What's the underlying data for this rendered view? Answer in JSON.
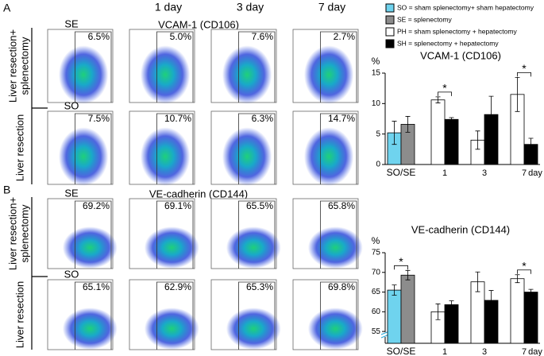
{
  "panels": [
    {
      "label": "A",
      "marker": "VCAM-1 (CD106)",
      "rows": [
        {
          "label_lines": [
            "Liver resection+",
            "splenectomy"
          ],
          "control": "SE",
          "percents": [
            "6.5%",
            "5.0%",
            "7.6%",
            "2.7%"
          ]
        },
        {
          "label_lines": [
            "Liver resection"
          ],
          "control": "SO",
          "percents": [
            "7.5%",
            "10.7%",
            "6.3%",
            "14.7%"
          ]
        }
      ]
    },
    {
      "label": "B",
      "marker": "VE-cadherin (CD144)",
      "rows": [
        {
          "label_lines": [
            "Liver resection+",
            "splenectomy"
          ],
          "control": "SE",
          "percents": [
            "69.2%",
            "69.1%",
            "65.5%",
            "65.8%"
          ]
        },
        {
          "label_lines": [
            "Liver resection"
          ],
          "control": "SO",
          "percents": [
            "65.1%",
            "62.9%",
            "65.3%",
            "69.8%"
          ]
        }
      ]
    }
  ],
  "columns": [
    "1 day",
    "3 day",
    "7 day"
  ],
  "legend": [
    {
      "label": "SO = sham splenectomy+ sham hepatectomy",
      "color": "#6fd3ee"
    },
    {
      "label": "SE = splenectomy",
      "color": "#8c8c8c"
    },
    {
      "label": "PH = sham splenectomy + hepatectomy",
      "color": "#ffffff"
    },
    {
      "label": "SH = splenectomy + hepatectomy",
      "color": "#000000"
    }
  ],
  "chart_data": [
    {
      "type": "bar",
      "title": "VCAM-1 (CD106)",
      "y_label": "%",
      "x_label": "day",
      "categories": [
        "SO/SE",
        "1",
        "3",
        "7"
      ],
      "series": [
        {
          "colors": [
            "#6fd3ee",
            "#ffffff",
            "#ffffff",
            "#ffffff"
          ],
          "values": [
            5.2,
            10.6,
            4.0,
            11.5
          ],
          "errors": [
            1.9,
            0.5,
            1.5,
            2.8
          ]
        },
        {
          "colors": [
            "#8c8c8c",
            "#000000",
            "#000000",
            "#000000"
          ],
          "values": [
            6.6,
            7.4,
            8.2,
            3.3
          ],
          "errors": [
            1.3,
            0.3,
            3.0,
            1.0
          ]
        }
      ],
      "ylim": [
        0,
        15
      ],
      "yticks": [
        0,
        5,
        10,
        15
      ],
      "significance": [
        {
          "category": 1,
          "label": "*"
        },
        {
          "category": 3,
          "label": "*"
        }
      ]
    },
    {
      "type": "bar",
      "title": "VE-cadherin (CD144)",
      "y_label": "%",
      "x_label": "day",
      "categories": [
        "SO/SE",
        "1",
        "3",
        "7"
      ],
      "series": [
        {
          "colors": [
            "#6fd3ee",
            "#ffffff",
            "#ffffff",
            "#ffffff"
          ],
          "values": [
            65.5,
            60.0,
            67.6,
            68.4
          ],
          "errors": [
            1.3,
            2.0,
            2.5,
            1.0
          ]
        },
        {
          "colors": [
            "#8c8c8c",
            "#000000",
            "#000000",
            "#000000"
          ],
          "values": [
            69.3,
            61.8,
            62.9,
            65.0
          ],
          "errors": [
            1.2,
            1.0,
            2.5,
            0.7
          ]
        }
      ],
      "ylim": [
        52,
        75
      ],
      "yticks": [
        55,
        60,
        65,
        70,
        75
      ],
      "axis_break": true,
      "significance": [
        {
          "category": 0,
          "label": "*"
        },
        {
          "category": 3,
          "label": "*"
        }
      ]
    }
  ]
}
